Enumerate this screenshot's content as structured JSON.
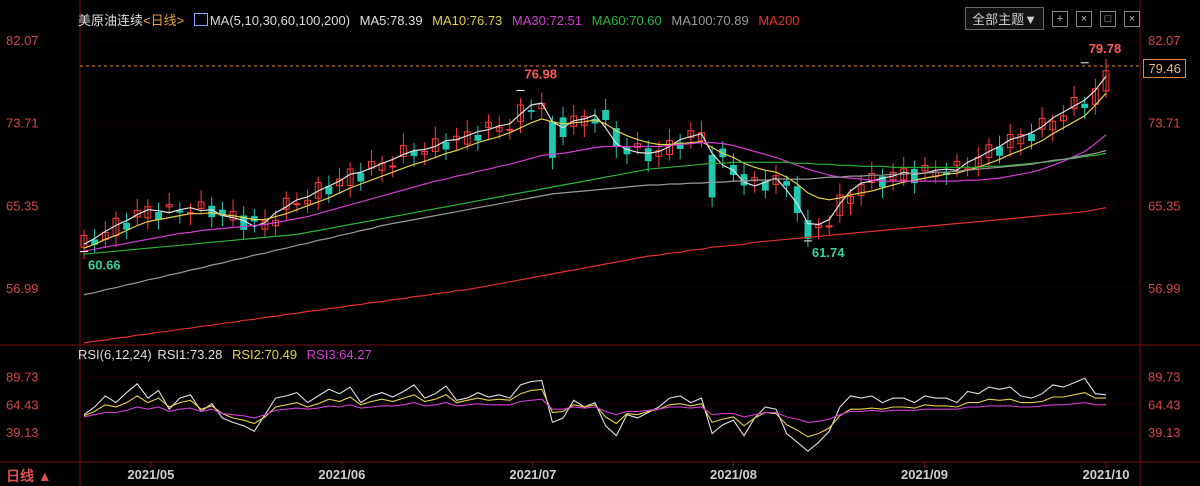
{
  "header": {
    "title": "美原油连续",
    "period": "<日线>",
    "ma_label": "MA(5,10,30,60,100,200)",
    "ma5": "MA5:78.39",
    "ma10": "MA10:76.73",
    "ma30": "MA30:72.51",
    "ma60": "MA60:70.60",
    "ma100": "MA100:70.89",
    "ma200": "MA200"
  },
  "toolbar": {
    "theme_label": "全部主题▼",
    "btn1": "+",
    "btn2": "×",
    "btn3": "□",
    "btn4": "×"
  },
  "rsi_header": {
    "label": "RSI(6,12,24)",
    "rsi1": "RSI1:73.28",
    "rsi2": "RSI2:70.49",
    "rsi3": "RSI3:64.27"
  },
  "period_button": "日线 ▲",
  "current_price": "79.46",
  "colors": {
    "up": "#ff3c3c",
    "down": "#1fc8b0",
    "ma5": "#e0e0e0",
    "ma10": "#e2d14a",
    "ma30": "#d23cd2",
    "ma60": "#29b53a",
    "ma100": "#9a9a9a",
    "ma200": "#e03030",
    "grid_red": "#7a1010",
    "axis_text": "#d04848"
  },
  "chart_data": [
    {
      "type": "candlestick",
      "title": "美原油连续",
      "y_ticks": [
        82.07,
        73.71,
        65.35,
        56.99
      ],
      "ylim": [
        51.2,
        83.1
      ],
      "x_ticks": [
        "2021/05",
        "2021/06",
        "2021/07",
        "2021/08",
        "2021/09",
        "2021/10"
      ],
      "annotations": [
        {
          "label": "76.98",
          "value": 76.98
        },
        {
          "label": "60.66",
          "value": 60.66
        },
        {
          "label": "61.74",
          "value": 61.74
        },
        {
          "label": "79.78",
          "value": 79.78
        }
      ],
      "series": [
        {
          "name": "MA5",
          "values": [
            61.4,
            62.0,
            62.7,
            63.3,
            63.8,
            64.4,
            64.9,
            64.8,
            64.6,
            64.9,
            65.1,
            64.8,
            64.9,
            64.3,
            64.1,
            63.8,
            63.2,
            63.6,
            64.6,
            65.2,
            65.9,
            66.2,
            66.8,
            67.3,
            67.8,
            68.5,
            68.7,
            69.1,
            69.6,
            70.0,
            70.5,
            70.9,
            71.0,
            71.3,
            71.9,
            72.0,
            72.4,
            72.8,
            73.0,
            73.4,
            73.6,
            74.6,
            75.5,
            75.7,
            73.8,
            73.2,
            73.9,
            74.1,
            74.5,
            73.2,
            71.6,
            71.0,
            70.7,
            70.6,
            70.8,
            71.3,
            72.0,
            72.3,
            72.6,
            70.6,
            69.4,
            68.9,
            67.7,
            67.3,
            67.7,
            68.1,
            66.9,
            65.5,
            63.5,
            63.4,
            63.9,
            65.5,
            66.8,
            67.6,
            67.8,
            68.1,
            68.3,
            68.7,
            68.5,
            68.6,
            68.9,
            69.0,
            68.9,
            69.7,
            70.2,
            70.8,
            71.3,
            72.0,
            72.3,
            72.7,
            73.3,
            74.2,
            74.8,
            75.4,
            76.0,
            77.0,
            78.4
          ]
        },
        {
          "name": "MA10",
          "values": [
            61.0,
            61.4,
            61.9,
            62.3,
            62.8,
            63.3,
            63.7,
            63.9,
            64.1,
            64.3,
            64.5,
            64.5,
            64.6,
            64.4,
            64.3,
            64.1,
            63.9,
            63.9,
            64.2,
            64.5,
            64.9,
            65.3,
            65.7,
            66.1,
            66.6,
            67.1,
            67.5,
            67.9,
            68.3,
            68.7,
            69.1,
            69.5,
            69.8,
            70.2,
            70.6,
            70.9,
            71.3,
            71.7,
            72.0,
            72.3,
            72.7,
            73.2,
            73.7,
            74.1,
            73.8,
            73.6,
            73.7,
            73.8,
            74.0,
            73.6,
            72.9,
            72.4,
            72.0,
            71.7,
            71.5,
            71.5,
            71.6,
            71.7,
            71.8,
            71.2,
            70.6,
            70.2,
            69.6,
            69.2,
            68.9,
            68.7,
            68.2,
            67.5,
            66.6,
            66.1,
            65.9,
            66.1,
            66.4,
            66.6,
            66.8,
            67.1,
            67.4,
            67.7,
            67.9,
            68.1,
            68.3,
            68.5,
            68.6,
            68.9,
            69.2,
            69.6,
            70.0,
            70.5,
            70.9,
            71.4,
            71.9,
            72.6,
            73.2,
            73.8,
            74.4,
            75.5,
            76.7
          ]
        },
        {
          "name": "MA30",
          "values": [
            60.7,
            60.9,
            61.1,
            61.3,
            61.5,
            61.7,
            61.9,
            62.1,
            62.3,
            62.5,
            62.6,
            62.8,
            62.9,
            63.0,
            63.1,
            63.2,
            63.3,
            63.4,
            63.6,
            63.8,
            64.0,
            64.2,
            64.5,
            64.8,
            65.1,
            65.4,
            65.7,
            66.0,
            66.3,
            66.6,
            66.9,
            67.2,
            67.5,
            67.8,
            68.0,
            68.3,
            68.5,
            68.8,
            69.0,
            69.3,
            69.5,
            69.8,
            70.1,
            70.4,
            70.5,
            70.6,
            70.8,
            71.0,
            71.2,
            71.3,
            71.3,
            71.3,
            71.3,
            71.3,
            71.3,
            71.4,
            71.5,
            71.6,
            71.7,
            71.7,
            71.6,
            71.4,
            71.1,
            70.8,
            70.5,
            70.2,
            69.8,
            69.4,
            69.0,
            68.7,
            68.4,
            68.2,
            68.1,
            68.0,
            67.9,
            67.8,
            67.8,
            67.8,
            67.8,
            67.8,
            67.8,
            67.8,
            67.8,
            67.9,
            67.9,
            68.0,
            68.1,
            68.3,
            68.5,
            68.7,
            69.0,
            69.4,
            69.8,
            70.3,
            70.8,
            71.6,
            72.5
          ]
        },
        {
          "name": "MA60",
          "values": [
            60.4,
            60.5,
            60.6,
            60.7,
            60.8,
            60.9,
            61.0,
            61.1,
            61.2,
            61.3,
            61.4,
            61.5,
            61.6,
            61.7,
            61.8,
            61.9,
            62.0,
            62.1,
            62.2,
            62.3,
            62.4,
            62.6,
            62.8,
            63.0,
            63.2,
            63.4,
            63.6,
            63.8,
            64.0,
            64.2,
            64.4,
            64.6,
            64.8,
            65.0,
            65.2,
            65.4,
            65.6,
            65.8,
            66.0,
            66.2,
            66.4,
            66.6,
            66.8,
            67.0,
            67.2,
            67.4,
            67.6,
            67.8,
            68.0,
            68.2,
            68.4,
            68.6,
            68.8,
            69.0,
            69.1,
            69.2,
            69.3,
            69.4,
            69.5,
            69.6,
            69.6,
            69.7,
            69.7,
            69.7,
            69.7,
            69.7,
            69.7,
            69.6,
            69.6,
            69.5,
            69.5,
            69.4,
            69.4,
            69.3,
            69.3,
            69.3,
            69.2,
            69.2,
            69.2,
            69.2,
            69.2,
            69.2,
            69.2,
            69.2,
            69.2,
            69.3,
            69.3,
            69.4,
            69.5,
            69.6,
            69.7,
            69.8,
            70.0,
            70.1,
            70.3,
            70.4,
            70.6
          ]
        },
        {
          "name": "MA100",
          "values": [
            56.3,
            56.5,
            56.8,
            57.0,
            57.3,
            57.5,
            57.8,
            58.0,
            58.3,
            58.5,
            58.8,
            59.0,
            59.3,
            59.5,
            59.8,
            60.0,
            60.3,
            60.5,
            60.8,
            61.0,
            61.3,
            61.5,
            61.8,
            62.0,
            62.3,
            62.5,
            62.8,
            63.0,
            63.3,
            63.5,
            63.7,
            63.9,
            64.1,
            64.3,
            64.5,
            64.7,
            64.9,
            65.1,
            65.3,
            65.5,
            65.7,
            65.9,
            66.1,
            66.3,
            66.5,
            66.6,
            66.7,
            66.8,
            66.9,
            67.0,
            67.1,
            67.2,
            67.3,
            67.4,
            67.4,
            67.5,
            67.5,
            67.6,
            67.6,
            67.7,
            67.7,
            67.8,
            67.8,
            67.9,
            67.9,
            68.0,
            68.0,
            68.0,
            68.0,
            68.1,
            68.2,
            68.2,
            68.3,
            68.3,
            68.4,
            68.4,
            68.5,
            68.5,
            68.6,
            68.6,
            68.7,
            68.7,
            68.8,
            68.9,
            69.0,
            69.1,
            69.2,
            69.3,
            69.4,
            69.5,
            69.7,
            69.9,
            70.0,
            70.2,
            70.4,
            70.6,
            70.9
          ]
        },
        {
          "name": "MA200",
          "values": [
            51.4,
            51.6,
            51.7,
            51.9,
            52.0,
            52.2,
            52.3,
            52.5,
            52.6,
            52.8,
            52.9,
            53.1,
            53.2,
            53.4,
            53.5,
            53.7,
            53.8,
            54.0,
            54.1,
            54.3,
            54.4,
            54.6,
            54.7,
            54.9,
            55.0,
            55.2,
            55.3,
            55.5,
            55.6,
            55.8,
            55.9,
            56.1,
            56.2,
            56.4,
            56.5,
            56.7,
            56.8,
            57.0,
            57.2,
            57.4,
            57.6,
            57.8,
            58.0,
            58.2,
            58.4,
            58.6,
            58.8,
            59.0,
            59.2,
            59.4,
            59.6,
            59.8,
            60.0,
            60.2,
            60.3,
            60.5,
            60.6,
            60.8,
            60.9,
            61.1,
            61.2,
            61.3,
            61.4,
            61.6,
            61.7,
            61.8,
            61.9,
            62.0,
            62.1,
            62.2,
            62.3,
            62.4,
            62.5,
            62.6,
            62.7,
            62.8,
            62.9,
            63.0,
            63.1,
            63.2,
            63.3,
            63.4,
            63.5,
            63.6,
            63.7,
            63.8,
            63.9,
            64.0,
            64.1,
            64.2,
            64.3,
            64.4,
            64.5,
            64.6,
            64.7,
            64.9,
            65.1
          ]
        }
      ]
    },
    {
      "type": "line",
      "title": "RSI(6,12,24)",
      "y_ticks": [
        89.73,
        64.43,
        39.13
      ],
      "ylim": [
        14,
        100
      ],
      "series": [
        {
          "name": "RSI1",
          "values": [
            55,
            62,
            72,
            66,
            75,
            83,
            70,
            77,
            60,
            70,
            73,
            58,
            65,
            52,
            48,
            45,
            40,
            55,
            70,
            72,
            75,
            66,
            72,
            78,
            74,
            80,
            66,
            72,
            75,
            71,
            76,
            82,
            70,
            74,
            81,
            68,
            70,
            75,
            71,
            73,
            70,
            82,
            85,
            86,
            48,
            52,
            68,
            62,
            66,
            45,
            36,
            55,
            52,
            57,
            62,
            70,
            72,
            66,
            70,
            38,
            46,
            50,
            36,
            52,
            62,
            60,
            38,
            30,
            22,
            30,
            40,
            62,
            72,
            70,
            72,
            66,
            70,
            70,
            66,
            72,
            70,
            70,
            66,
            76,
            74,
            80,
            78,
            80,
            72,
            70,
            74,
            82,
            80,
            84,
            88,
            74,
            73
          ]
        },
        {
          "name": "RSI2",
          "values": [
            54,
            58,
            64,
            62,
            66,
            72,
            66,
            70,
            62,
            66,
            68,
            60,
            63,
            56,
            52,
            50,
            47,
            53,
            62,
            64,
            66,
            62,
            65,
            69,
            67,
            71,
            64,
            67,
            69,
            67,
            70,
            73,
            67,
            69,
            73,
            66,
            68,
            70,
            68,
            69,
            68,
            74,
            77,
            78,
            57,
            58,
            64,
            62,
            64,
            53,
            47,
            56,
            55,
            58,
            60,
            64,
            65,
            63,
            65,
            48,
            51,
            53,
            45,
            52,
            57,
            56,
            46,
            41,
            35,
            38,
            43,
            54,
            60,
            60,
            61,
            60,
            62,
            62,
            61,
            64,
            63,
            63,
            62,
            66,
            66,
            69,
            68,
            69,
            66,
            66,
            67,
            71,
            71,
            73,
            75,
            70,
            70
          ]
        },
        {
          "name": "RSI3",
          "values": [
            53,
            55,
            57,
            57,
            59,
            62,
            60,
            62,
            58,
            60,
            61,
            58,
            60,
            56,
            55,
            54,
            52,
            55,
            59,
            60,
            61,
            60,
            61,
            63,
            62,
            64,
            61,
            62,
            63,
            63,
            64,
            66,
            63,
            64,
            66,
            63,
            64,
            65,
            64,
            64,
            64,
            67,
            68,
            69,
            60,
            60,
            62,
            61,
            62,
            58,
            55,
            58,
            58,
            59,
            60,
            62,
            62,
            61,
            62,
            55,
            56,
            56,
            53,
            55,
            57,
            57,
            53,
            51,
            48,
            49,
            51,
            55,
            58,
            58,
            59,
            58,
            59,
            59,
            59,
            60,
            60,
            60,
            60,
            62,
            62,
            63,
            63,
            63,
            62,
            62,
            63,
            64,
            64,
            65,
            66,
            64,
            64
          ]
        }
      ]
    }
  ]
}
